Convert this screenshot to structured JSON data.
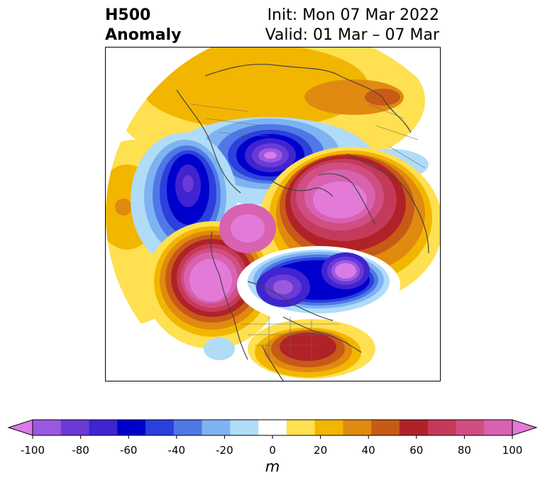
{
  "header": {
    "title_line1": "H500",
    "title_line2": "Anomaly",
    "init_text": "Init: Mon 07 Mar 2022",
    "valid_text": "Valid: 01 Mar – 07 Mar"
  },
  "colorbar": {
    "unit": "m",
    "ticks": [
      "-100",
      "-80",
      "-60",
      "-40",
      "-20",
      "0",
      "20",
      "40",
      "60",
      "80",
      "100"
    ],
    "colors": [
      "#d97be8",
      "#9b59e0",
      "#6a3ad6",
      "#3f24d0",
      "#0000cd",
      "#2b40dc",
      "#4f78e6",
      "#7eb3f2",
      "#b0dcf8",
      "#ffffff",
      "#ffe050",
      "#f2b600",
      "#e08a10",
      "#c85a18",
      "#b02228",
      "#c43a5a",
      "#d04e82",
      "#d862b0",
      "#e47ad8"
    ],
    "levels": [
      -100,
      -90,
      -80,
      -70,
      -60,
      -50,
      -40,
      -30,
      -20,
      -10,
      10,
      20,
      30,
      40,
      50,
      60,
      70,
      80,
      90,
      100
    ],
    "extend": "both"
  },
  "map": {
    "projection": "north-polar-stereographic",
    "field": "500 hPa geopotential height anomaly"
  }
}
